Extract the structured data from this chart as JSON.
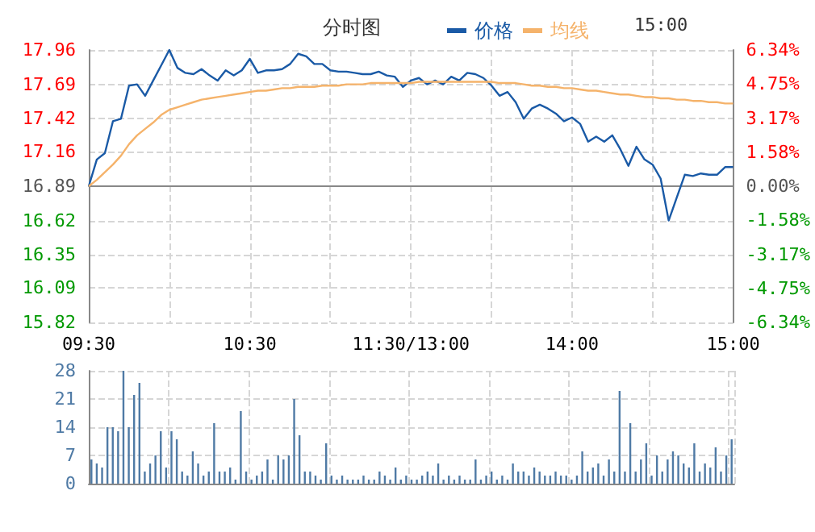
{
  "chart_data": [
    {
      "type": "line",
      "title": "分时图",
      "annotations": [
        "15:00"
      ],
      "legend": "top",
      "grid": true,
      "marker": "none",
      "line_style": "solid",
      "categories": [
        "09:30",
        null,
        null,
        null,
        null,
        null,
        null,
        null,
        null,
        null,
        null,
        null,
        null,
        null,
        null,
        null,
        null,
        null,
        null,
        null,
        "10:30",
        null,
        null,
        null,
        null,
        null,
        null,
        null,
        null,
        null,
        null,
        null,
        null,
        null,
        null,
        null,
        null,
        null,
        null,
        null,
        "11:30/13:00",
        null,
        null,
        null,
        null,
        null,
        null,
        null,
        null,
        null,
        null,
        null,
        null,
        null,
        null,
        null,
        null,
        null,
        null,
        null,
        "14:00",
        null,
        null,
        null,
        null,
        null,
        null,
        null,
        null,
        null,
        null,
        null,
        null,
        null,
        null,
        null,
        null,
        null,
        null,
        null,
        "15:00"
      ],
      "ylim": [
        15.82,
        17.96
      ],
      "yticks": [
        15.82,
        16.09,
        16.35,
        16.62,
        16.89,
        17.16,
        17.42,
        17.69,
        17.96
      ],
      "y2lim": [
        -6.34,
        6.34
      ],
      "y2ticks": [
        {
          "value": -6.34,
          "label": "-6.34%"
        },
        {
          "value": -4.75,
          "label": "-4.75%"
        },
        {
          "value": -3.17,
          "label": "-3.17%"
        },
        {
          "value": -1.58,
          "label": "-1.58%"
        },
        {
          "value": 0,
          "label": "0.00%"
        },
        {
          "value": 1.58,
          "label": "1.58%"
        },
        {
          "value": 3.17,
          "label": "3.17%"
        },
        {
          "value": 4.75,
          "label": "4.75%"
        },
        {
          "value": 6.34,
          "label": "6.34%"
        }
      ],
      "series": [
        {
          "name": "价格",
          "color": "#1a5aa6",
          "values": [
            16.89,
            17.1,
            17.15,
            17.4,
            17.42,
            17.68,
            17.69,
            17.6,
            17.72,
            17.84,
            17.96,
            17.82,
            17.78,
            17.77,
            17.81,
            17.76,
            17.72,
            17.8,
            17.76,
            17.8,
            17.89,
            17.78,
            17.8,
            17.8,
            17.81,
            17.85,
            17.93,
            17.91,
            17.85,
            17.85,
            17.8,
            17.79,
            17.79,
            17.78,
            17.77,
            17.77,
            17.79,
            17.76,
            17.75,
            17.67,
            17.72,
            17.74,
            17.69,
            17.72,
            17.69,
            17.75,
            17.72,
            17.78,
            17.77,
            17.74,
            17.68,
            17.6,
            17.63,
            17.55,
            17.42,
            17.5,
            17.53,
            17.5,
            17.46,
            17.4,
            17.43,
            17.38,
            17.24,
            17.28,
            17.24,
            17.29,
            17.18,
            17.05,
            17.2,
            17.1,
            17.06,
            16.95,
            16.62,
            16.8,
            16.98,
            16.97,
            16.99,
            16.98,
            16.98,
            17.04,
            17.04
          ]
        },
        {
          "name": "均线",
          "color": "#f5b36b",
          "values": [
            16.89,
            16.94,
            17.0,
            17.06,
            17.13,
            17.22,
            17.29,
            17.34,
            17.39,
            17.45,
            17.49,
            17.51,
            17.53,
            17.55,
            17.57,
            17.58,
            17.59,
            17.6,
            17.61,
            17.62,
            17.63,
            17.64,
            17.64,
            17.65,
            17.66,
            17.66,
            17.67,
            17.67,
            17.67,
            17.68,
            17.68,
            17.68,
            17.69,
            17.69,
            17.69,
            17.7,
            17.7,
            17.7,
            17.7,
            17.7,
            17.7,
            17.71,
            17.71,
            17.71,
            17.71,
            17.71,
            17.71,
            17.71,
            17.71,
            17.71,
            17.71,
            17.7,
            17.7,
            17.7,
            17.69,
            17.68,
            17.68,
            17.67,
            17.67,
            17.66,
            17.66,
            17.65,
            17.64,
            17.64,
            17.63,
            17.62,
            17.61,
            17.61,
            17.6,
            17.59,
            17.59,
            17.58,
            17.58,
            17.57,
            17.57,
            17.56,
            17.56,
            17.55,
            17.55,
            17.54,
            17.54
          ]
        }
      ]
    },
    {
      "type": "bar",
      "grid": true,
      "tick_labels": "y",
      "ylim": [
        0,
        28
      ],
      "yticks": [
        0,
        7,
        14,
        21,
        28
      ],
      "categories": [
        null,
        null,
        null,
        null,
        null,
        null,
        null,
        null,
        null,
        null,
        null,
        null,
        null,
        null,
        null,
        null,
        null,
        null,
        null,
        null,
        null,
        null,
        null,
        null,
        null,
        null,
        null,
        null,
        null,
        null,
        null,
        null,
        null,
        null,
        null,
        null,
        null,
        null,
        null,
        null,
        null,
        null,
        null,
        null,
        null,
        null,
        null,
        null,
        null,
        null,
        null,
        null,
        null,
        null,
        null,
        null,
        null,
        null,
        null,
        null,
        null,
        null,
        null,
        null,
        null,
        null,
        null,
        null,
        null,
        null,
        null,
        null,
        null,
        null,
        null,
        null,
        null,
        null,
        null,
        null,
        null,
        null,
        null,
        null,
        null,
        null,
        null,
        null,
        null,
        null,
        null,
        null,
        null,
        null,
        null,
        null,
        null,
        null,
        null,
        null,
        null,
        null,
        null,
        null,
        null,
        null,
        null,
        null,
        null,
        null,
        null,
        null,
        null,
        null,
        null,
        null,
        null,
        null,
        null,
        null,
        null
      ],
      "series": [
        {
          "color": "#4f7aa5",
          "values": [
            6,
            5,
            4,
            14,
            14,
            13,
            28,
            14,
            22,
            25,
            3,
            5,
            7,
            13,
            4,
            13,
            11,
            3,
            2,
            8,
            5,
            2,
            3,
            15,
            3,
            3,
            4,
            1,
            18,
            3,
            1,
            2,
            3,
            6,
            1,
            7,
            6,
            7,
            21,
            12,
            3,
            3,
            2,
            1,
            10,
            2,
            1,
            2,
            1,
            1,
            1,
            2,
            1,
            1,
            3,
            2,
            1,
            4,
            1,
            2,
            1,
            1,
            2,
            3,
            2,
            5,
            1,
            2,
            1,
            2,
            1,
            1,
            6,
            1,
            2,
            3,
            1,
            2,
            1,
            5,
            3,
            3,
            2,
            4,
            3,
            2,
            2,
            3,
            2,
            2,
            1,
            2,
            8,
            3,
            4,
            5,
            2,
            6,
            3,
            23,
            3,
            15,
            3,
            6,
            10,
            2,
            7,
            3,
            6,
            8,
            7,
            5,
            4,
            10,
            3,
            5,
            4,
            9,
            3,
            7,
            11
          ]
        }
      ]
    }
  ]
}
